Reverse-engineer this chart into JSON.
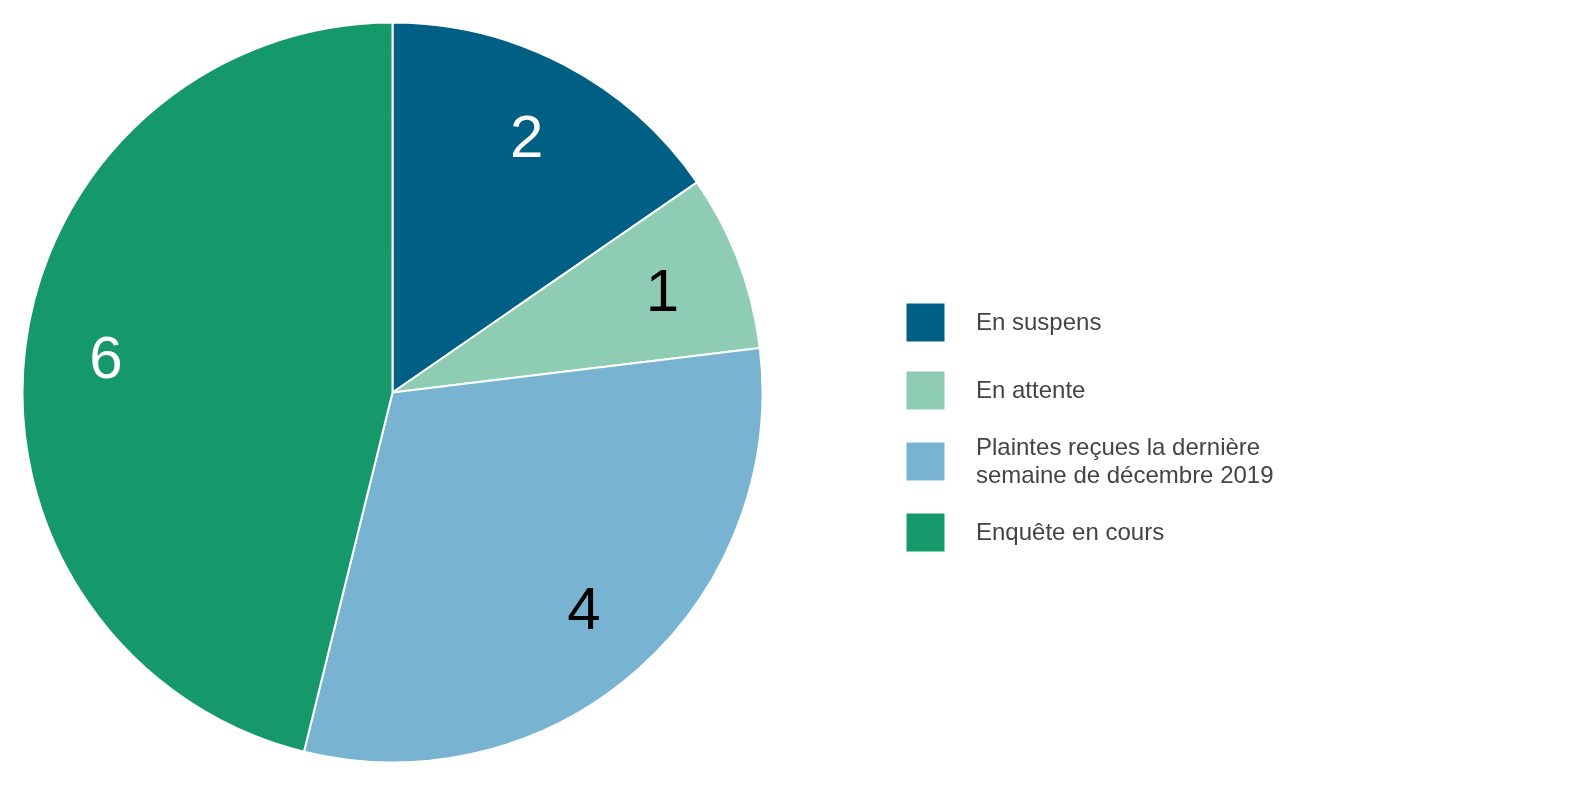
{
  "chart_data": {
    "type": "pie",
    "categories": [
      "En suspens",
      "En attente",
      "Plaintes reçues la dernière semaine de décembre 2019",
      "Enquête en cours"
    ],
    "values": [
      2,
      1,
      4,
      6
    ],
    "colors": [
      "#005f85",
      "#8ecdb4",
      "#78b4d2",
      "#15996a"
    ],
    "data_labels": true,
    "legend": "right"
  }
}
